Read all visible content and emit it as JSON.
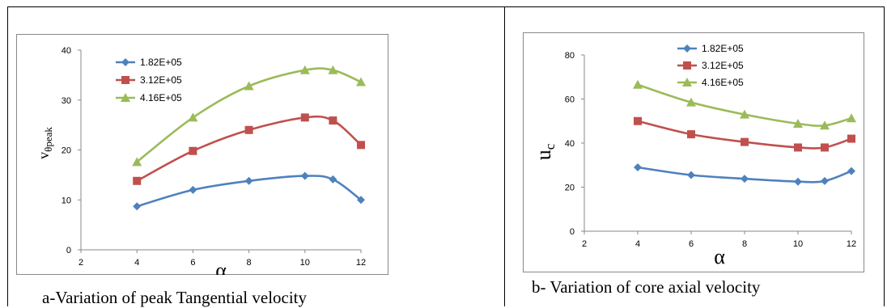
{
  "captions": {
    "a": "a-Variation of peak Tangential velocity",
    "b": "b- Variation of core axial velocity"
  },
  "chart_data": [
    {
      "type": "line",
      "xlabel": "α",
      "ylabel": "vθpeak",
      "xlim": [
        2,
        12
      ],
      "ylim": [
        0,
        40
      ],
      "xticks": [
        2,
        4,
        6,
        8,
        10,
        12
      ],
      "yticks": [
        0,
        10,
        20,
        30,
        40
      ],
      "grid": false,
      "legend": "top-left",
      "x": [
        4,
        6,
        8,
        10,
        11,
        12
      ],
      "series": [
        {
          "name": "1.82E+05",
          "color": "#4F81BD",
          "marker": "diamond",
          "values": [
            8.7,
            12,
            13.8,
            14.8,
            14.1,
            10
          ]
        },
        {
          "name": "3.12E+05",
          "color": "#C0504D",
          "marker": "square",
          "values": [
            13.8,
            19.8,
            24,
            26.5,
            25.9,
            21
          ]
        },
        {
          "name": "4.16E+05",
          "color": "#9BBB59",
          "marker": "triangle",
          "values": [
            17.6,
            26.5,
            32.8,
            36,
            36,
            33.6
          ]
        }
      ]
    },
    {
      "type": "line",
      "xlabel": "α",
      "ylabel": "uc",
      "xlim": [
        2,
        12
      ],
      "ylim": [
        0,
        80
      ],
      "xticks": [
        2,
        4,
        6,
        8,
        10,
        12
      ],
      "yticks": [
        0,
        20,
        40,
        60,
        80
      ],
      "grid": false,
      "legend": "top-center",
      "x": [
        4,
        6,
        8,
        10,
        11,
        12
      ],
      "series": [
        {
          "name": "1.82E+05",
          "color": "#4F81BD",
          "marker": "diamond",
          "values": [
            29,
            25.5,
            23.8,
            22.5,
            22.8,
            27.3
          ]
        },
        {
          "name": "3.12E+05",
          "color": "#C0504D",
          "marker": "square",
          "values": [
            50,
            44,
            40.5,
            38,
            38,
            42
          ]
        },
        {
          "name": "4.16E+05",
          "color": "#9BBB59",
          "marker": "triangle",
          "values": [
            66.5,
            58.5,
            53,
            48.8,
            48,
            51.3
          ]
        }
      ]
    }
  ]
}
